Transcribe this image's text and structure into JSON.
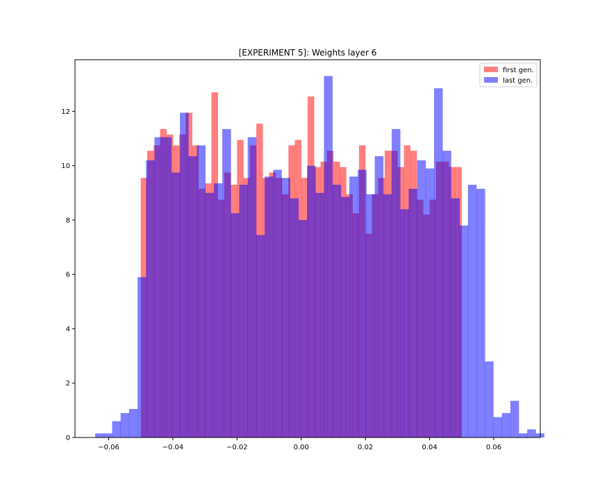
{
  "chart_data": {
    "type": "bar",
    "title": "[EXPERIMENT 5]: Weights layer 6",
    "xlabel": "",
    "ylabel": "",
    "xlim": [
      -0.0705,
      0.0745
    ],
    "ylim": [
      0,
      13.9
    ],
    "xticks": [
      -0.06,
      -0.04,
      -0.02,
      0.0,
      0.02,
      0.04,
      0.06
    ],
    "xtick_labels": [
      "−0.06",
      "−0.04",
      "−0.02",
      "0.00",
      "0.02",
      "0.04",
      "0.06"
    ],
    "yticks": [
      0,
      2,
      4,
      6,
      8,
      10,
      12
    ],
    "ytick_labels": [
      "0",
      "2",
      "4",
      "6",
      "8",
      "10",
      "12"
    ],
    "grid": false,
    "legend_position": "top-right",
    "series": [
      {
        "name": "first gen.",
        "color": "#ff0000",
        "opacity": 0.5,
        "bin_start": -0.05,
        "bin_width": 0.002,
        "values": [
          9.55,
          10.55,
          10.75,
          11.35,
          11.15,
          10.75,
          11.15,
          11.95,
          10.75,
          9.15,
          9.35,
          12.7,
          8.75,
          9.75,
          9.3,
          10.95,
          9.55,
          10.75,
          11.55,
          9.55,
          9.75,
          9.55,
          8.95,
          10.75,
          10.95,
          9.55,
          12.55,
          9.95,
          10.15,
          10.55,
          10.15,
          9.95,
          8.95,
          8.25,
          10.75,
          7.5,
          8.95,
          9.55,
          10.55,
          10.55,
          9.95,
          10.75,
          10.55,
          8.75,
          8.2,
          8.75,
          10.15,
          10.15,
          9.95,
          9.95
        ]
      },
      {
        "name": "last gen.",
        "color": "#0000ff",
        "opacity": 0.5,
        "bin_start": -0.0642,
        "bin_width": 0.00264,
        "values": [
          0.15,
          0.15,
          0.6,
          0.9,
          1.05,
          5.9,
          10.2,
          11.05,
          11.05,
          9.75,
          11.95,
          10.35,
          10.75,
          9.0,
          9.35,
          11.35,
          8.25,
          9.3,
          11.05,
          7.45,
          9.6,
          9.85,
          9.55,
          8.8,
          8.0,
          10.0,
          9.0,
          13.3,
          9.3,
          8.85,
          9.6,
          9.85,
          8.95,
          10.35,
          8.95,
          11.35,
          8.4,
          9.15,
          10.2,
          9.9,
          12.85,
          10.55,
          8.8,
          7.8,
          9.3,
          9.15,
          2.8,
          0.75,
          0.9,
          1.35,
          0.15,
          0.3,
          0.15
        ]
      }
    ]
  }
}
